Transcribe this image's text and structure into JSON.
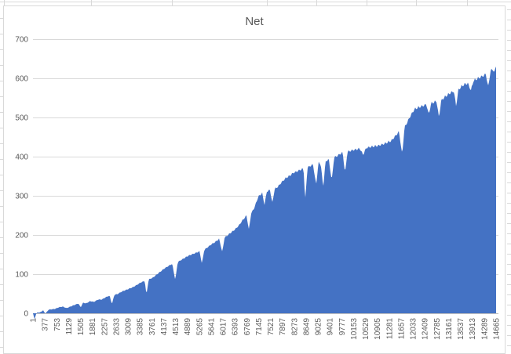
{
  "chart_data": {
    "type": "area",
    "title": "Net",
    "legend": "none",
    "grid": "horizontal",
    "x_range": [
      1,
      14665
    ],
    "ylim": [
      0,
      700
    ],
    "y_ticks": [
      0,
      100,
      200,
      300,
      400,
      500,
      600,
      700
    ],
    "x_tick_labels": [
      "1",
      "377",
      "753",
      "1129",
      "1505",
      "1881",
      "2257",
      "2633",
      "3009",
      "3385",
      "3761",
      "4137",
      "4513",
      "4889",
      "5265",
      "5641",
      "6017",
      "6393",
      "6769",
      "7145",
      "7521",
      "7897",
      "8273",
      "8649",
      "9025",
      "9401",
      "9777",
      "10153",
      "10529",
      "10905",
      "11281",
      "11657",
      "12033",
      "12409",
      "12785",
      "13161",
      "13537",
      "13913",
      "14289",
      "14665"
    ],
    "fill_color": "#4472C4",
    "gridline_color": "#d9d9d9",
    "axis_line_color": "#bfbfbf",
    "label_color": "#595959",
    "title_color": "#595959",
    "series": [
      {
        "name": "Net",
        "points": [
          [
            1,
            0
          ],
          [
            50,
            -14
          ],
          [
            99,
            -2
          ],
          [
            149,
            4
          ],
          [
            198,
            2
          ],
          [
            322,
            8
          ],
          [
            396,
            0
          ],
          [
            495,
            10
          ],
          [
            694,
            12
          ],
          [
            817,
            16
          ],
          [
            941,
            18
          ],
          [
            1065,
            14
          ],
          [
            1189,
            18
          ],
          [
            1313,
            22
          ],
          [
            1437,
            26
          ],
          [
            1511,
            16
          ],
          [
            1585,
            28
          ],
          [
            1684,
            26
          ],
          [
            1808,
            32
          ],
          [
            1932,
            30
          ],
          [
            2056,
            36
          ],
          [
            2180,
            36
          ],
          [
            2304,
            42
          ],
          [
            2428,
            46
          ],
          [
            2502,
            24
          ],
          [
            2576,
            48
          ],
          [
            2675,
            50
          ],
          [
            2799,
            56
          ],
          [
            2923,
            60
          ],
          [
            3047,
            64
          ],
          [
            3171,
            68
          ],
          [
            3294,
            74
          ],
          [
            3418,
            80
          ],
          [
            3542,
            84
          ],
          [
            3592,
            48
          ],
          [
            3666,
            88
          ],
          [
            3790,
            92
          ],
          [
            3914,
            100
          ],
          [
            4038,
            108
          ],
          [
            4162,
            116
          ],
          [
            4285,
            122
          ],
          [
            4409,
            128
          ],
          [
            4508,
            86
          ],
          [
            4583,
            132
          ],
          [
            4657,
            136
          ],
          [
            4781,
            142
          ],
          [
            4905,
            148
          ],
          [
            5029,
            152
          ],
          [
            5152,
            156
          ],
          [
            5276,
            160
          ],
          [
            5351,
            128
          ],
          [
            5425,
            164
          ],
          [
            5524,
            170
          ],
          [
            5648,
            178
          ],
          [
            5772,
            184
          ],
          [
            5896,
            192
          ],
          [
            5995,
            158
          ],
          [
            6069,
            196
          ],
          [
            6143,
            200
          ],
          [
            6267,
            208
          ],
          [
            6391,
            216
          ],
          [
            6515,
            226
          ],
          [
            6639,
            240
          ],
          [
            6763,
            252
          ],
          [
            6837,
            216
          ],
          [
            6911,
            258
          ],
          [
            7010,
            272
          ],
          [
            7134,
            300
          ],
          [
            7258,
            310
          ],
          [
            7332,
            280
          ],
          [
            7407,
            314
          ],
          [
            7506,
            318
          ],
          [
            7580,
            284
          ],
          [
            7654,
            320
          ],
          [
            7753,
            326
          ],
          [
            7877,
            338
          ],
          [
            8001,
            348
          ],
          [
            8125,
            354
          ],
          [
            8249,
            362
          ],
          [
            8372,
            366
          ],
          [
            8471,
            370
          ],
          [
            8570,
            372
          ],
          [
            8620,
            290
          ],
          [
            8694,
            376
          ],
          [
            8793,
            380
          ],
          [
            8868,
            384
          ],
          [
            8967,
            330
          ],
          [
            9041,
            388
          ],
          [
            9115,
            384
          ],
          [
            9190,
            324
          ],
          [
            9264,
            390
          ],
          [
            9363,
            398
          ],
          [
            9462,
            342
          ],
          [
            9536,
            402
          ],
          [
            9610,
            404
          ],
          [
            9710,
            410
          ],
          [
            9809,
            414
          ],
          [
            9883,
            360
          ],
          [
            9957,
            416
          ],
          [
            10106,
            420
          ],
          [
            10230,
            422
          ],
          [
            10354,
            424
          ],
          [
            10453,
            408
          ],
          [
            10552,
            426
          ],
          [
            10651,
            428
          ],
          [
            10799,
            430
          ],
          [
            10948,
            432
          ],
          [
            11097,
            436
          ],
          [
            11220,
            440
          ],
          [
            11344,
            444
          ],
          [
            11468,
            456
          ],
          [
            11592,
            468
          ],
          [
            11691,
            408
          ],
          [
            11765,
            478
          ],
          [
            11864,
            494
          ],
          [
            11963,
            510
          ],
          [
            12087,
            526
          ],
          [
            12211,
            530
          ],
          [
            12335,
            534
          ],
          [
            12459,
            538
          ],
          [
            12533,
            512
          ],
          [
            12607,
            540
          ],
          [
            12706,
            544
          ],
          [
            12781,
            546
          ],
          [
            12855,
            504
          ],
          [
            12929,
            548
          ],
          [
            13028,
            556
          ],
          [
            13127,
            562
          ],
          [
            13227,
            568
          ],
          [
            13326,
            572
          ],
          [
            13400,
            534
          ],
          [
            13474,
            576
          ],
          [
            13573,
            584
          ],
          [
            13672,
            590
          ],
          [
            13771,
            592
          ],
          [
            13870,
            574
          ],
          [
            13945,
            598
          ],
          [
            14068,
            604
          ],
          [
            14167,
            608
          ],
          [
            14267,
            612
          ],
          [
            14341,
            616
          ],
          [
            14415,
            582
          ],
          [
            14489,
            624
          ],
          [
            14564,
            628
          ],
          [
            14613,
            620
          ],
          [
            14665,
            638
          ]
        ]
      }
    ]
  }
}
